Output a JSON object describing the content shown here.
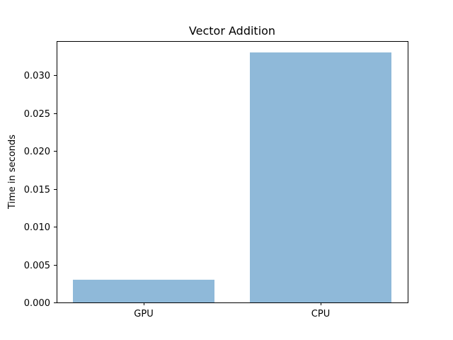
{
  "chart_data": {
    "type": "bar",
    "title": "Vector Addition",
    "xlabel": "",
    "ylabel": "Time in seconds",
    "categories": [
      "GPU",
      "CPU"
    ],
    "values": [
      0.003,
      0.033
    ],
    "ylim": [
      0,
      0.0345
    ],
    "yticks": [
      0.0,
      0.005,
      0.01,
      0.015,
      0.02,
      0.025,
      0.03
    ],
    "ytick_labels": [
      "0.000",
      "0.005",
      "0.010",
      "0.015",
      "0.020",
      "0.025",
      "0.030"
    ],
    "bar_color": "#8fb9d9",
    "grid": false,
    "legend": "none"
  }
}
